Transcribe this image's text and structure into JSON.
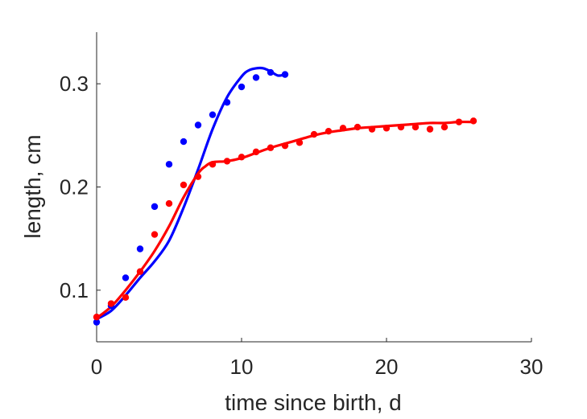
{
  "chart_data": {
    "type": "scatter",
    "xlabel": "time since birth, d",
    "ylabel": "length, cm",
    "xlim": [
      0,
      30
    ],
    "ylim": [
      0.05,
      0.35
    ],
    "xticks": [
      0,
      10,
      20,
      30
    ],
    "yticks": [
      0.1,
      0.2,
      0.3
    ],
    "xtick_labels": [
      "0",
      "10",
      "20",
      "30"
    ],
    "ytick_labels": [
      "0.1",
      "0.2",
      "0.3"
    ],
    "grid": false,
    "legend": "none",
    "series": [
      {
        "color": "#0000ff",
        "points": [
          [
            0,
            0.069
          ],
          [
            1,
            0.085
          ],
          [
            2,
            0.112
          ],
          [
            3,
            0.14
          ],
          [
            4,
            0.181
          ],
          [
            5,
            0.222
          ],
          [
            6,
            0.244
          ],
          [
            7,
            0.26
          ],
          [
            8,
            0.27
          ],
          [
            9,
            0.282
          ],
          [
            10,
            0.297
          ],
          [
            11,
            0.306
          ],
          [
            12,
            0.311
          ],
          [
            13,
            0.309
          ]
        ],
        "fit": [
          [
            0,
            0.072
          ],
          [
            1,
            0.08
          ],
          [
            2,
            0.095
          ],
          [
            3,
            0.112
          ],
          [
            4,
            0.128
          ],
          [
            5,
            0.148
          ],
          [
            6,
            0.18
          ],
          [
            7,
            0.217
          ],
          [
            8,
            0.256
          ],
          [
            9,
            0.287
          ],
          [
            10,
            0.307
          ],
          [
            10.5,
            0.313
          ],
          [
            11,
            0.315
          ],
          [
            11.5,
            0.315
          ],
          [
            12,
            0.312
          ],
          [
            12.5,
            0.308
          ],
          [
            13,
            0.309
          ]
        ]
      },
      {
        "color": "#ff0000",
        "points": [
          [
            0,
            0.074
          ],
          [
            1,
            0.087
          ],
          [
            2,
            0.093
          ],
          [
            3,
            0.118
          ],
          [
            4,
            0.154
          ],
          [
            5,
            0.184
          ],
          [
            6,
            0.202
          ],
          [
            7,
            0.21
          ],
          [
            8,
            0.222
          ],
          [
            9,
            0.225
          ],
          [
            10,
            0.229
          ],
          [
            11,
            0.234
          ],
          [
            12,
            0.238
          ],
          [
            13,
            0.24
          ],
          [
            14,
            0.243
          ],
          [
            15,
            0.251
          ],
          [
            16,
            0.254
          ],
          [
            17,
            0.257
          ],
          [
            18,
            0.258
          ],
          [
            19,
            0.256
          ],
          [
            20,
            0.257
          ],
          [
            21,
            0.258
          ],
          [
            22,
            0.258
          ],
          [
            23,
            0.256
          ],
          [
            24,
            0.258
          ],
          [
            25,
            0.263
          ],
          [
            26,
            0.264
          ]
        ],
        "fit": [
          [
            0,
            0.073
          ],
          [
            1,
            0.084
          ],
          [
            2,
            0.1
          ],
          [
            3,
            0.118
          ],
          [
            4,
            0.138
          ],
          [
            5,
            0.162
          ],
          [
            6,
            0.19
          ],
          [
            7,
            0.213
          ],
          [
            7.5,
            0.22
          ],
          [
            8,
            0.224
          ],
          [
            9,
            0.225
          ],
          [
            10,
            0.228
          ],
          [
            11,
            0.233
          ],
          [
            12,
            0.238
          ],
          [
            13,
            0.242
          ],
          [
            14,
            0.246
          ],
          [
            15,
            0.25
          ],
          [
            16,
            0.253
          ],
          [
            17,
            0.255
          ],
          [
            18,
            0.257
          ],
          [
            19,
            0.258
          ],
          [
            20,
            0.259
          ],
          [
            21,
            0.26
          ],
          [
            22,
            0.261
          ],
          [
            23,
            0.262
          ],
          [
            24,
            0.262
          ],
          [
            25,
            0.263
          ],
          [
            26,
            0.263
          ]
        ]
      }
    ]
  }
}
